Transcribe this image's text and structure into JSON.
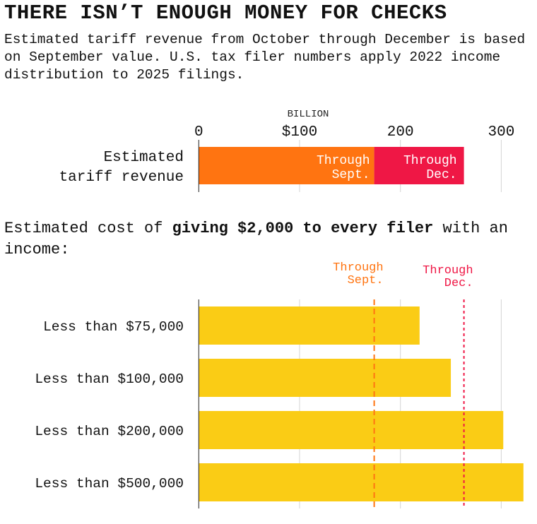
{
  "title": "THERE ISN’T ENOUGH MONEY FOR CHECKS",
  "subtitle": "Estimated tariff revenue from October through December is based on September value. U.S. tax filer numbers apply 2022 income distribution to 2025 filings.",
  "section": {
    "prefix": "Estimated cost of ",
    "bold": "giving $2,000 to every filer",
    "suffix": " with an income:"
  },
  "colors": {
    "sept": "#ff7411",
    "dec": "#ef1745",
    "cost": "#facc15",
    "grid": "#d4d4d4",
    "axis": "#222222"
  },
  "chart_data": [
    {
      "type": "bar",
      "orientation": "horizontal",
      "stacked": true,
      "unit_label": "BILLION",
      "xlim": [
        0,
        320
      ],
      "ticks": [
        {
          "value": 0,
          "label": "0"
        },
        {
          "value": 100,
          "label": "$100"
        },
        {
          "value": 200,
          "label": "200"
        },
        {
          "value": 300,
          "label": "300"
        }
      ],
      "categories": [
        "Estimated tariff revenue"
      ],
      "series": [
        {
          "name": "Through Sept.",
          "values": [
            174
          ]
        },
        {
          "name": "Through Dec.",
          "values": [
            89
          ]
        }
      ],
      "grid": true
    },
    {
      "type": "bar",
      "orientation": "horizontal",
      "xlim": [
        0,
        320
      ],
      "categories": [
        "Less than $75,000",
        "Less than $100,000",
        "Less than $200,000",
        "Less than $500,000"
      ],
      "values": [
        219,
        250,
        302,
        322
      ],
      "reference_lines": [
        {
          "label": "Through Sept.",
          "value": 174,
          "style": "dashed"
        },
        {
          "label": "Through Dec.",
          "value": 263,
          "style": "dotted"
        }
      ],
      "grid": true
    }
  ]
}
